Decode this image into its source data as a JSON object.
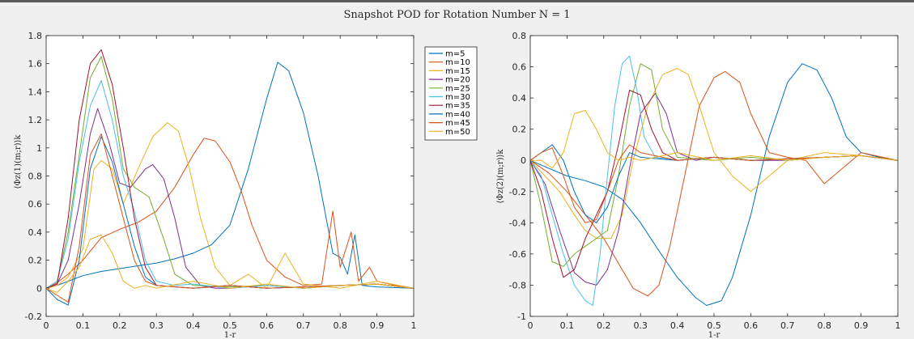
{
  "title": "Snapshot POD for Rotation Number N = 1",
  "chart_data": [
    {
      "type": "line",
      "xlabel": "1-r",
      "ylabel": "⟨Φz(1)(m;r)⟩k",
      "xlim": [
        0,
        1
      ],
      "ylim": [
        -0.2,
        1.8
      ],
      "xticks": [
        "0",
        "0.1",
        "0.2",
        "0.3",
        "0.4",
        "0.5",
        "0.6",
        "0.7",
        "0.8",
        "0.9",
        "1"
      ],
      "yticks": [
        "-0.2",
        "0",
        "0.2",
        "0.4",
        "0.6",
        "0.8",
        "1",
        "1.2",
        "1.4",
        "1.6",
        "1.8"
      ],
      "legend_position": "outside-right",
      "series": [
        {
          "name": "m=5",
          "color": "#0072BD",
          "x": [
            0,
            0.03,
            0.06,
            0.1,
            0.15,
            0.2,
            0.25,
            0.3,
            0.35,
            0.4,
            0.45,
            0.5,
            0.55,
            0.6,
            0.63,
            0.66,
            0.7,
            0.74,
            0.78,
            0.8,
            0.82,
            0.84,
            0.86,
            0.9,
            1.0
          ],
          "y": [
            0,
            0.02,
            0.05,
            0.09,
            0.12,
            0.14,
            0.16,
            0.18,
            0.21,
            0.25,
            0.31,
            0.45,
            0.85,
            1.35,
            1.61,
            1.55,
            1.25,
            0.8,
            0.25,
            0.22,
            0.1,
            0.38,
            0.02,
            0.01,
            0.0
          ]
        },
        {
          "name": "m=10",
          "color": "#D95319",
          "x": [
            0,
            0.03,
            0.06,
            0.1,
            0.15,
            0.2,
            0.25,
            0.3,
            0.35,
            0.4,
            0.43,
            0.46,
            0.5,
            0.53,
            0.56,
            0.6,
            0.65,
            0.7,
            0.75,
            0.78,
            0.8,
            0.83,
            0.85,
            0.88,
            0.9,
            0.95,
            1.0
          ],
          "y": [
            0,
            0.04,
            0.1,
            0.2,
            0.36,
            0.42,
            0.47,
            0.55,
            0.72,
            0.95,
            1.07,
            1.05,
            0.9,
            0.7,
            0.45,
            0.2,
            0.08,
            0.02,
            0.03,
            0.55,
            0.15,
            0.4,
            0.05,
            0.15,
            0.05,
            0.02,
            0.0
          ]
        },
        {
          "name": "m=15",
          "color": "#EDB120",
          "x": [
            0,
            0.03,
            0.06,
            0.1,
            0.13,
            0.15,
            0.18,
            0.21,
            0.25,
            0.29,
            0.33,
            0.36,
            0.39,
            0.42,
            0.46,
            0.5,
            0.55,
            0.6,
            0.65,
            0.7,
            0.8,
            0.9,
            1.0
          ],
          "y": [
            0,
            0.02,
            0.08,
            0.28,
            0.85,
            0.91,
            0.85,
            0.6,
            0.85,
            1.08,
            1.18,
            1.12,
            0.85,
            0.5,
            0.15,
            0.02,
            0.1,
            0.0,
            0.25,
            0.03,
            0.0,
            0.05,
            0.0
          ]
        },
        {
          "name": "m=20",
          "color": "#7E2F8E",
          "x": [
            0,
            0.03,
            0.06,
            0.09,
            0.12,
            0.14,
            0.17,
            0.2,
            0.23,
            0.27,
            0.29,
            0.32,
            0.35,
            0.38,
            0.42,
            0.46,
            0.5,
            0.6,
            0.7,
            0.8,
            0.9,
            1.0
          ],
          "y": [
            0,
            0.03,
            0.2,
            0.6,
            1.1,
            1.28,
            1.05,
            0.75,
            0.72,
            0.85,
            0.88,
            0.78,
            0.5,
            0.15,
            0.02,
            0.0,
            0.0,
            0.02,
            0.0,
            0.02,
            0.03,
            0.0
          ]
        },
        {
          "name": "m=25",
          "color": "#77AC30",
          "x": [
            0,
            0.03,
            0.06,
            0.09,
            0.12,
            0.15,
            0.18,
            0.21,
            0.24,
            0.28,
            0.32,
            0.35,
            0.4,
            0.5,
            0.6,
            0.7,
            0.8,
            0.9,
            1.0
          ],
          "y": [
            0,
            0.05,
            0.4,
            0.95,
            1.5,
            1.65,
            1.35,
            0.85,
            0.72,
            0.65,
            0.35,
            0.1,
            0.02,
            0.01,
            0.02,
            0.0,
            0.02,
            0.03,
            0.0
          ]
        },
        {
          "name": "m=30",
          "color": "#4DBEEE",
          "x": [
            0,
            0.03,
            0.06,
            0.09,
            0.12,
            0.15,
            0.18,
            0.21,
            0.24,
            0.27,
            0.3,
            0.35,
            0.4,
            0.5,
            0.6,
            0.7,
            0.8,
            0.9,
            1.0
          ],
          "y": [
            0,
            0.05,
            0.35,
            0.9,
            1.3,
            1.48,
            1.2,
            0.8,
            0.55,
            0.2,
            0.05,
            0.02,
            0.03,
            0.0,
            0.02,
            0.0,
            0.02,
            0.03,
            0.0
          ]
        },
        {
          "name": "m=35",
          "color": "#A2142F",
          "x": [
            0,
            0.03,
            0.06,
            0.09,
            0.12,
            0.15,
            0.18,
            0.21,
            0.24,
            0.27,
            0.3,
            0.4,
            0.5,
            0.6,
            0.7,
            0.8,
            0.9,
            1.0
          ],
          "y": [
            0,
            0.03,
            0.5,
            1.2,
            1.6,
            1.7,
            1.45,
            1.0,
            0.5,
            0.15,
            0.02,
            0.0,
            0.02,
            0.0,
            0.01,
            0.02,
            0.03,
            0.0
          ]
        },
        {
          "name": "m=40",
          "color": "#0072BD",
          "x": [
            0,
            0.03,
            0.06,
            0.09,
            0.12,
            0.15,
            0.18,
            0.21,
            0.24,
            0.27,
            0.3,
            0.4,
            0.5,
            0.6,
            0.7,
            0.8,
            0.9,
            1.0
          ],
          "y": [
            0,
            -0.08,
            -0.12,
            0.2,
            0.85,
            1.08,
            0.9,
            0.6,
            0.3,
            0.08,
            0.02,
            0.0,
            0.02,
            0.0,
            0.01,
            0.02,
            0.03,
            0.0
          ]
        },
        {
          "name": "m=45",
          "color": "#D95319",
          "x": [
            0,
            0.03,
            0.06,
            0.09,
            0.12,
            0.15,
            0.18,
            0.21,
            0.24,
            0.27,
            0.3,
            0.4,
            0.5,
            0.6,
            0.7,
            0.8,
            0.9,
            1.0
          ],
          "y": [
            0,
            -0.05,
            -0.1,
            0.3,
            0.95,
            1.1,
            0.8,
            0.5,
            0.2,
            0.05,
            0.02,
            0.0,
            0.02,
            0.0,
            0.01,
            0.02,
            0.03,
            0.0
          ]
        },
        {
          "name": "m=50",
          "color": "#EDB120",
          "x": [
            0,
            0.03,
            0.06,
            0.09,
            0.12,
            0.15,
            0.18,
            0.21,
            0.24,
            0.27,
            0.3,
            0.4,
            0.5,
            0.6,
            0.7,
            0.8,
            0.9,
            1.0
          ],
          "y": [
            0,
            -0.03,
            0.05,
            0.15,
            0.35,
            0.38,
            0.25,
            0.05,
            0.0,
            0.02,
            0.0,
            0.05,
            0.0,
            0.03,
            0.0,
            0.02,
            0.03,
            0.0
          ]
        }
      ]
    },
    {
      "type": "line",
      "xlabel": "1-r",
      "ylabel": "⟨Φz(2)(m;r)⟩k",
      "xlim": [
        0,
        1
      ],
      "ylim": [
        -1,
        0.8
      ],
      "xticks": [
        "0",
        "0.1",
        "0.2",
        "0.3",
        "0.4",
        "0.5",
        "0.6",
        "0.7",
        "0.8",
        "0.9",
        "1"
      ],
      "yticks": [
        "-1",
        "-0.8",
        "-0.6",
        "-0.4",
        "-0.2",
        "0",
        "0.2",
        "0.4",
        "0.6",
        "0.8"
      ],
      "series": [
        {
          "name": "m=5",
          "color": "#0072BD",
          "x": [
            0,
            0.05,
            0.1,
            0.15,
            0.2,
            0.25,
            0.3,
            0.35,
            0.4,
            0.45,
            0.48,
            0.52,
            0.55,
            0.6,
            0.65,
            0.7,
            0.74,
            0.78,
            0.82,
            0.86,
            0.9,
            0.95,
            1.0
          ],
          "y": [
            0,
            -0.05,
            -0.1,
            -0.13,
            -0.17,
            -0.25,
            -0.4,
            -0.58,
            -0.75,
            -0.88,
            -0.93,
            -0.9,
            -0.75,
            -0.35,
            0.15,
            0.5,
            0.62,
            0.58,
            0.4,
            0.15,
            0.05,
            0.02,
            0.0
          ]
        },
        {
          "name": "m=10",
          "color": "#D95319",
          "x": [
            0,
            0.05,
            0.1,
            0.15,
            0.2,
            0.25,
            0.28,
            0.32,
            0.35,
            0.38,
            0.42,
            0.46,
            0.5,
            0.53,
            0.57,
            0.6,
            0.65,
            0.7,
            0.75,
            0.8,
            0.9,
            1.0
          ],
          "y": [
            0,
            -0.08,
            -0.2,
            -0.35,
            -0.5,
            -0.7,
            -0.82,
            -0.87,
            -0.8,
            -0.55,
            -0.1,
            0.35,
            0.53,
            0.57,
            0.5,
            0.3,
            0.05,
            0.02,
            0.0,
            -0.15,
            0.05,
            0.0
          ]
        },
        {
          "name": "m=15",
          "color": "#EDB120",
          "x": [
            0,
            0.04,
            0.08,
            0.12,
            0.15,
            0.18,
            0.22,
            0.25,
            0.28,
            0.32,
            0.36,
            0.4,
            0.43,
            0.46,
            0.5,
            0.55,
            0.6,
            0.7,
            0.8,
            0.9,
            1.0
          ],
          "y": [
            0,
            -0.1,
            -0.2,
            -0.35,
            -0.45,
            -0.5,
            -0.5,
            -0.35,
            0.0,
            0.35,
            0.55,
            0.59,
            0.55,
            0.35,
            0.05,
            -0.1,
            -0.2,
            0.0,
            0.05,
            0.03,
            0.0
          ]
        },
        {
          "name": "m=20",
          "color": "#7E2F8E",
          "x": [
            0,
            0.04,
            0.08,
            0.12,
            0.15,
            0.18,
            0.21,
            0.24,
            0.27,
            0.3,
            0.34,
            0.37,
            0.4,
            0.45,
            0.5,
            0.6,
            0.7,
            0.8,
            0.9,
            1.0
          ],
          "y": [
            0,
            -0.15,
            -0.45,
            -0.72,
            -0.78,
            -0.8,
            -0.7,
            -0.45,
            -0.05,
            0.3,
            0.43,
            0.3,
            0.05,
            0.0,
            0.02,
            0.0,
            0.0,
            0.02,
            0.03,
            0.0
          ]
        },
        {
          "name": "m=25",
          "color": "#77AC30",
          "x": [
            0,
            0.03,
            0.06,
            0.09,
            0.12,
            0.15,
            0.18,
            0.21,
            0.24,
            0.27,
            0.3,
            0.33,
            0.36,
            0.4,
            0.5,
            0.6,
            0.7,
            0.8,
            0.9,
            1.0
          ],
          "y": [
            0,
            -0.3,
            -0.65,
            -0.68,
            -0.6,
            -0.55,
            -0.5,
            -0.45,
            -0.1,
            0.35,
            0.62,
            0.58,
            0.2,
            0.02,
            0.0,
            0.02,
            0.0,
            0.02,
            0.03,
            0.0
          ]
        },
        {
          "name": "m=30",
          "color": "#4DBEEE",
          "x": [
            0,
            0.03,
            0.06,
            0.09,
            0.12,
            0.15,
            0.17,
            0.19,
            0.21,
            0.23,
            0.25,
            0.27,
            0.29,
            0.31,
            0.34,
            0.4,
            0.5,
            0.6,
            0.7,
            0.8,
            0.9,
            1.0
          ],
          "y": [
            0,
            -0.1,
            -0.35,
            -0.6,
            -0.8,
            -0.9,
            -0.93,
            -0.6,
            -0.1,
            0.35,
            0.62,
            0.67,
            0.45,
            0.15,
            0.02,
            0.0,
            0.02,
            0.0,
            0.01,
            0.02,
            0.03,
            0.0
          ]
        },
        {
          "name": "m=35",
          "color": "#A2142F",
          "x": [
            0,
            0.03,
            0.06,
            0.09,
            0.12,
            0.15,
            0.18,
            0.21,
            0.24,
            0.27,
            0.3,
            0.33,
            0.36,
            0.4,
            0.5,
            0.6,
            0.7,
            0.8,
            0.9,
            1.0
          ],
          "y": [
            0,
            -0.2,
            -0.5,
            -0.75,
            -0.7,
            -0.5,
            -0.35,
            -0.2,
            0.1,
            0.45,
            0.42,
            0.2,
            0.05,
            0.0,
            0.02,
            0.0,
            0.01,
            0.02,
            0.03,
            0.0
          ]
        },
        {
          "name": "m=40",
          "color": "#0072BD",
          "x": [
            0,
            0.03,
            0.06,
            0.09,
            0.12,
            0.15,
            0.18,
            0.21,
            0.24,
            0.27,
            0.3,
            0.4,
            0.5,
            0.6,
            0.7,
            0.8,
            0.9,
            1.0
          ],
          "y": [
            0,
            0.05,
            0.1,
            0.0,
            -0.2,
            -0.35,
            -0.4,
            -0.3,
            -0.1,
            0.05,
            0.02,
            0.0,
            0.02,
            0.0,
            0.01,
            0.02,
            0.03,
            0.0
          ]
        },
        {
          "name": "m=45",
          "color": "#D95319",
          "x": [
            0,
            0.03,
            0.06,
            0.09,
            0.12,
            0.15,
            0.18,
            0.21,
            0.24,
            0.27,
            0.3,
            0.4,
            0.5,
            0.6,
            0.7,
            0.8,
            0.9,
            1.0
          ],
          "y": [
            0,
            0.05,
            0.08,
            -0.1,
            -0.3,
            -0.4,
            -0.38,
            -0.2,
            0.0,
            0.1,
            0.05,
            0.0,
            0.02,
            0.0,
            0.01,
            0.02,
            0.03,
            0.0
          ]
        },
        {
          "name": "m=50",
          "color": "#EDB120",
          "x": [
            0,
            0.03,
            0.06,
            0.09,
            0.12,
            0.15,
            0.18,
            0.21,
            0.24,
            0.27,
            0.3,
            0.4,
            0.5,
            0.6,
            0.7,
            0.8,
            0.9,
            1.0
          ],
          "y": [
            0,
            0.0,
            -0.05,
            0.05,
            0.3,
            0.32,
            0.2,
            0.05,
            0.0,
            0.02,
            0.0,
            0.05,
            0.0,
            0.03,
            0.0,
            0.02,
            0.03,
            0.0
          ]
        }
      ]
    }
  ]
}
